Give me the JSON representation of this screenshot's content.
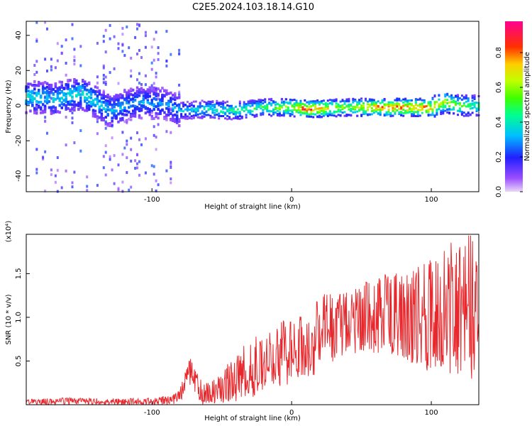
{
  "title": "C2E5.2024.103.18.14.G10",
  "colorbar": {
    "label": "Normalized spectral amplitude",
    "ticks": [
      "0.0",
      "0.2",
      "0.4",
      "0.6",
      "0.8"
    ],
    "tick_values": [
      0.0,
      0.2,
      0.4,
      0.6,
      0.8
    ],
    "range": [
      0,
      0.98
    ]
  },
  "chart_data": [
    {
      "type": "heatmap",
      "xlabel": "Height of straight line (km)",
      "ylabel": "Frequency (Hz)",
      "xlim": [
        -190,
        134
      ],
      "ylim": [
        -49,
        48
      ],
      "xticks": [
        -100,
        0,
        100
      ],
      "yticks": [
        -40,
        -20,
        0,
        20,
        40
      ],
      "grid": false,
      "colormap": [
        "#6a0dad",
        "#2020ff",
        "#00c0ff",
        "#00ff80",
        "#40ff00",
        "#ffff00",
        "#ff8000",
        "#ff0000",
        "#ff00a0"
      ],
      "ridge": {
        "x": [
          -190,
          -170,
          -150,
          -130,
          -110,
          -90,
          -80,
          -60,
          -40,
          -20,
          0,
          10,
          40,
          60,
          80,
          100,
          110,
          120,
          134
        ],
        "y": [
          5,
          4,
          7,
          -3,
          2,
          1,
          -3,
          -2,
          -3,
          -1,
          -1,
          -2,
          -1,
          -1,
          -1,
          -1,
          2,
          0,
          0
        ]
      },
      "peak": {
        "x": [
          -190,
          -170,
          -150,
          -130,
          -110,
          -90,
          -80,
          -60,
          -40,
          -20,
          0,
          10,
          40,
          60,
          80,
          100,
          110,
          120,
          134
        ],
        "amplitude": [
          0.42,
          0.38,
          0.45,
          0.35,
          0.33,
          0.3,
          0.35,
          0.45,
          0.5,
          0.55,
          0.7,
          0.95,
          0.6,
          0.88,
          0.9,
          0.85,
          0.7,
          0.6,
          0.5
        ]
      }
    },
    {
      "type": "line",
      "xlabel": "Height of straight line (km)",
      "ylabel": "SNR (10 * v/v)",
      "multiplier": "(x10⁴)",
      "xlim": [
        -190,
        134
      ],
      "ylim": [
        0,
        1.95
      ],
      "xticks": [
        -100,
        0,
        100
      ],
      "yticks": [
        0.5,
        1.0,
        1.5
      ],
      "ytick_labels": [
        "0.5",
        "1.0",
        "1.5"
      ],
      "color": "#e8282c",
      "series": [
        {
          "x": [
            -190,
            -160,
            -130,
            -100,
            -85,
            -80,
            -75,
            -72,
            -70,
            -65,
            -60,
            -50,
            -40,
            -30,
            -20,
            -10,
            0,
            10,
            20,
            25,
            30,
            40,
            50,
            60,
            70,
            80,
            90,
            100,
            110,
            120,
            130,
            134
          ],
          "y": [
            0.03,
            0.04,
            0.03,
            0.04,
            0.05,
            0.1,
            0.25,
            0.4,
            0.3,
            0.15,
            0.1,
            0.18,
            0.28,
            0.38,
            0.45,
            0.55,
            0.6,
            0.68,
            0.75,
            1.05,
            0.8,
            0.95,
            1.0,
            1.0,
            1.05,
            0.98,
            1.05,
            1.0,
            1.1,
            1.15,
            1.05,
            1.1
          ],
          "upper": [
            0.06,
            0.08,
            0.07,
            0.08,
            0.12,
            0.2,
            0.45,
            0.55,
            0.42,
            0.3,
            0.25,
            0.4,
            0.6,
            0.75,
            0.85,
            0.95,
            1.05,
            1.1,
            1.2,
            1.3,
            1.25,
            1.3,
            1.4,
            1.45,
            1.5,
            1.5,
            1.6,
            1.7,
            1.8,
            1.9,
            1.95,
            1.7
          ],
          "lower": [
            0.0,
            0.0,
            0.0,
            0.0,
            0.0,
            0.02,
            0.1,
            0.2,
            0.12,
            0.02,
            0.02,
            0.04,
            0.08,
            0.15,
            0.2,
            0.25,
            0.3,
            0.35,
            0.4,
            0.5,
            0.45,
            0.55,
            0.6,
            0.6,
            0.55,
            0.5,
            0.45,
            0.4,
            0.35,
            0.3,
            0.15,
            0.3
          ]
        }
      ]
    }
  ]
}
